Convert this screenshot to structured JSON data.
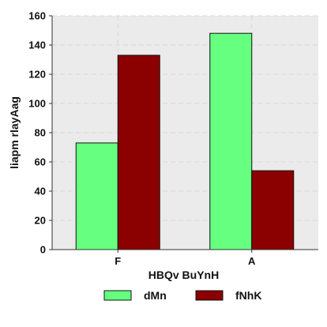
{
  "chart_data": {
    "type": "bar",
    "categories": [
      "F",
      "A"
    ],
    "series": [
      {
        "name": "dMn",
        "color": "#66ff80",
        "values": [
          73,
          148
        ]
      },
      {
        "name": "fNhK",
        "color": "#8b0000",
        "values": [
          133,
          54
        ]
      }
    ],
    "xlabel": "HBQv BuYnH",
    "ylabel": "liapm rlayAag",
    "ylim": [
      0,
      160
    ],
    "yticks": [
      0,
      20,
      40,
      60,
      80,
      100,
      120,
      140,
      160
    ],
    "grid": true,
    "legend_position": "bottom",
    "background_color": "#ebebeb",
    "grid_color": "#d8d8d8"
  }
}
